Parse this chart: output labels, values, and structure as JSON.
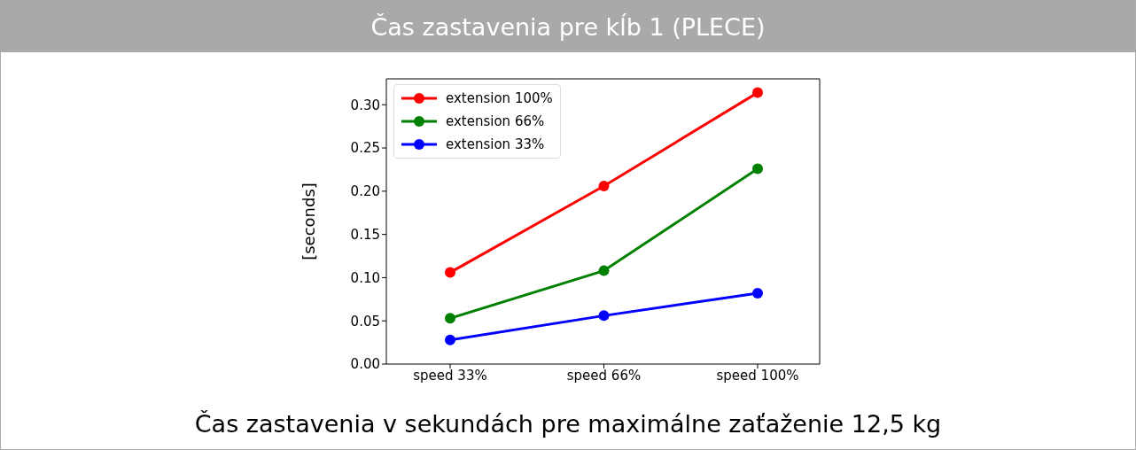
{
  "chart_data": {
    "type": "line",
    "title": "Čas zastavenia pre kĺb 1 (PLECE)",
    "ylabel": "[seconds]",
    "annotations": [
      "Čas zastavenia v sekundách pre maximálne zaťaženie 12,5 kg"
    ],
    "categories": [
      "speed 33%",
      "speed 66%",
      "speed 100%"
    ],
    "series": [
      {
        "name": "extension 100%",
        "color": "#ff0000",
        "values": [
          0.106,
          0.206,
          0.314
        ]
      },
      {
        "name": "extension 66%",
        "color": "#008000",
        "values": [
          0.053,
          0.108,
          0.226
        ]
      },
      {
        "name": "extension 33%",
        "color": "#0000ff",
        "values": [
          0.028,
          0.056,
          0.082
        ]
      }
    ],
    "ylim": [
      0,
      0.33
    ],
    "yticks": [
      {
        "value": 0,
        "label": "0.00"
      },
      {
        "value": 0.05,
        "label": "0.05"
      },
      {
        "value": 0.1,
        "label": "0.10"
      },
      {
        "value": 0.15,
        "label": "0.15"
      },
      {
        "value": 0.2,
        "label": "0.20"
      },
      {
        "value": 0.25,
        "label": "0.25"
      },
      {
        "value": 0.3,
        "label": "0.30"
      }
    ],
    "grid": false,
    "legend": "top left",
    "marker": "circle",
    "line_style": "solid"
  }
}
